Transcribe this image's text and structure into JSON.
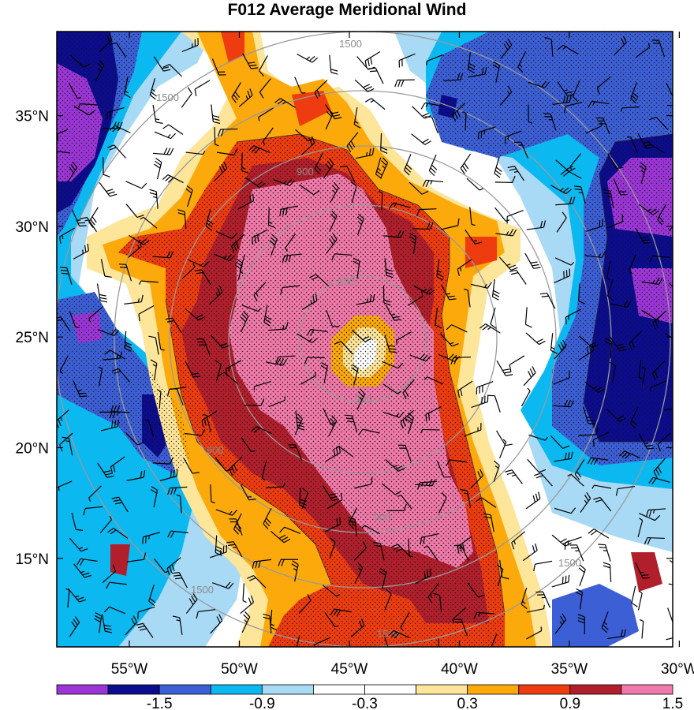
{
  "chart_data": {
    "type": "heatmap",
    "title": "F012 Average Meridional Wind",
    "xlabel": "",
    "ylabel": "",
    "x_ticks": [
      "55°W",
      "50°W",
      "45°W",
      "40°W",
      "35°W",
      "30°W"
    ],
    "x_tick_values": [
      -55,
      -50,
      -45,
      -40,
      -35,
      -30
    ],
    "y_ticks": [
      "35°N",
      "30°N",
      "25°N",
      "20°N",
      "15°N"
    ],
    "y_tick_values": [
      35,
      30,
      25,
      20,
      15
    ],
    "xlim": [
      -58.3,
      -30.3
    ],
    "ylim": [
      11.0,
      38.8
    ],
    "colorbar": {
      "labels": [
        "-1.5",
        "-0.9",
        "-0.3",
        "0.3",
        "0.9",
        "1.5"
      ],
      "colors": [
        "#9b35d6",
        "#0c0c8f",
        "#3c5fd6",
        "#0cb8f0",
        "#a8d9f5",
        "#ffffff",
        "#ffffff",
        "#fde59a",
        "#fca90c",
        "#ee3c10",
        "#b21f2c",
        "#f27aaa"
      ]
    },
    "overlay_contours": {
      "center_lon": -43.5,
      "center_lat": 25.0,
      "levels": [
        300,
        900,
        1500
      ],
      "labels": [
        "300",
        "900",
        "1500"
      ],
      "color": "#9a9a9a"
    },
    "wind_barbs": "present",
    "stipple": "present"
  }
}
